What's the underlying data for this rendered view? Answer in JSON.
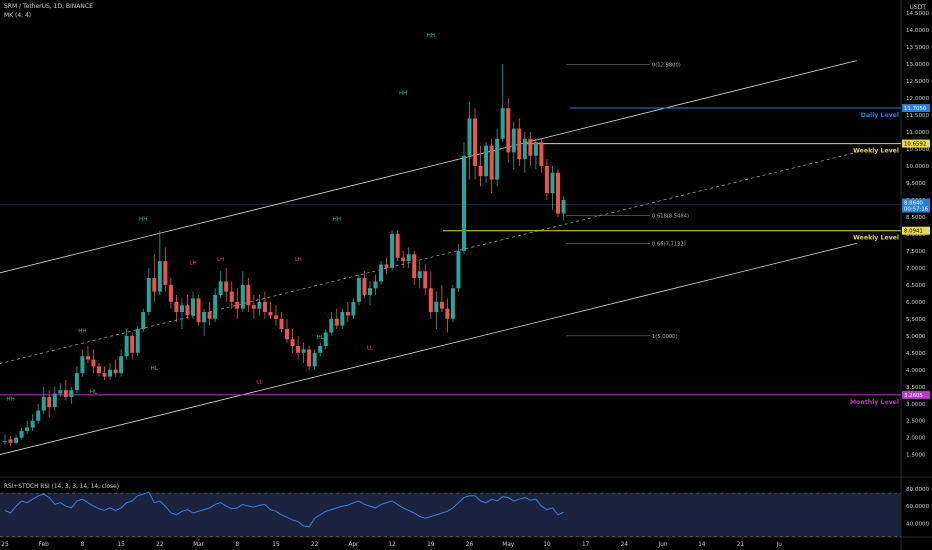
{
  "header": {
    "symbol_line": "SRM / TetherUS, 1D, BINANCE",
    "indicator_line": "MK (4, 4)",
    "currency": "USDT"
  },
  "colors": {
    "up": "#26a69a",
    "down": "#ef5350",
    "grid": "#1a1a1a",
    "channel": "#d9d9d9",
    "daily": "#2a7fd4",
    "weekly": "#e6d84a",
    "monthly": "#b23dbf",
    "rsi_line": "#3f7fd9",
    "rsi_band": "#1a2240",
    "price_tag": "#2a7fd4"
  },
  "chart_data": {
    "type": "candlestick",
    "price_axis": {
      "ticks": [
        "14.5000",
        "14.0000",
        "13.5000",
        "13.0000",
        "12.5000",
        "12.0000",
        "11.5000",
        "11.0000",
        "10.5000",
        "10.0000",
        "9.5000",
        "9.0000",
        "8.5000",
        "8.0000",
        "7.5000",
        "7.0000",
        "6.5000",
        "6.0000",
        "5.5000",
        "5.0000",
        "4.5000",
        "4.0000",
        "3.5000",
        "3.0000",
        "2.5000",
        "2.0000",
        "1.5000"
      ],
      "tick_values": [
        14.5,
        14,
        13.5,
        13,
        12.5,
        12,
        11.5,
        11,
        10.5,
        10,
        9.5,
        9,
        8.5,
        8,
        7.5,
        7,
        6.5,
        6,
        5.5,
        5,
        4.5,
        4,
        3.5,
        3,
        2.5,
        2,
        1.5
      ],
      "range": [
        1.05,
        14.65
      ]
    },
    "date_axis": {
      "labels": [
        "25",
        "Feb",
        "8",
        "15",
        "22",
        "Mar",
        "8",
        "15",
        "22",
        "Apr",
        "12",
        "19",
        "26",
        "May",
        "10",
        "17",
        "24",
        "Jun",
        "14",
        "21",
        "Ju"
      ],
      "label_day_index": [
        0,
        7,
        14,
        21,
        28,
        35,
        42,
        49,
        56,
        63,
        70,
        77,
        84,
        91,
        98,
        105,
        112,
        119,
        126,
        133,
        140
      ]
    },
    "candles": [
      [
        1.9,
        2.1,
        1.8,
        1.9
      ],
      [
        1.95,
        2.05,
        1.75,
        1.85
      ],
      [
        1.85,
        2.1,
        1.8,
        2.0
      ],
      [
        2.0,
        2.3,
        1.95,
        2.2
      ],
      [
        2.2,
        2.5,
        2.1,
        2.3
      ],
      [
        2.3,
        2.7,
        2.2,
        2.5
      ],
      [
        2.5,
        3.0,
        2.4,
        2.8
      ],
      [
        2.8,
        3.5,
        2.7,
        3.2
      ],
      [
        3.2,
        3.4,
        2.6,
        2.9
      ],
      [
        2.9,
        3.5,
        2.8,
        3.3
      ],
      [
        3.3,
        3.6,
        3.2,
        3.4
      ],
      [
        3.4,
        3.7,
        3.1,
        3.2
      ],
      [
        3.2,
        3.5,
        3.0,
        3.4
      ],
      [
        3.4,
        4.1,
        3.3,
        3.9
      ],
      [
        3.9,
        4.6,
        3.8,
        4.4
      ],
      [
        4.4,
        4.7,
        4.2,
        4.3
      ],
      [
        4.3,
        4.6,
        3.9,
        4.1
      ],
      [
        4.1,
        4.2,
        3.8,
        3.9
      ],
      [
        3.9,
        4.1,
        3.7,
        3.8
      ],
      [
        3.8,
        4.2,
        3.7,
        4.0
      ],
      [
        4.0,
        4.3,
        3.8,
        3.9
      ],
      [
        3.9,
        4.6,
        3.8,
        4.4
      ],
      [
        4.4,
        5.2,
        4.3,
        5.0
      ],
      [
        5.0,
        5.1,
        4.3,
        4.5
      ],
      [
        4.5,
        5.3,
        4.4,
        5.2
      ],
      [
        5.2,
        5.8,
        5.1,
        5.7
      ],
      [
        5.7,
        7.0,
        5.6,
        6.7
      ],
      [
        6.7,
        7.4,
        6.0,
        6.3
      ],
      [
        6.3,
        8.1,
        6.2,
        7.2
      ],
      [
        7.2,
        7.6,
        6.3,
        6.5
      ],
      [
        6.5,
        6.7,
        5.8,
        6.0
      ],
      [
        6.0,
        6.2,
        5.4,
        5.7
      ],
      [
        5.7,
        6.1,
        5.2,
        5.9
      ],
      [
        5.9,
        6.2,
        5.5,
        5.6
      ],
      [
        5.6,
        6.3,
        5.5,
        6.1
      ],
      [
        6.1,
        6.2,
        5.3,
        5.4
      ],
      [
        5.4,
        5.8,
        5.0,
        5.7
      ],
      [
        5.7,
        6.0,
        5.3,
        5.5
      ],
      [
        5.5,
        6.4,
        5.4,
        6.2
      ],
      [
        6.2,
        6.9,
        6.1,
        6.6
      ],
      [
        6.6,
        7.0,
        6.0,
        6.3
      ],
      [
        6.3,
        6.6,
        5.8,
        6.0
      ],
      [
        6.0,
        6.4,
        5.5,
        5.8
      ],
      [
        5.8,
        6.9,
        5.7,
        6.5
      ],
      [
        6.5,
        6.7,
        5.7,
        5.9
      ],
      [
        5.9,
        6.2,
        5.5,
        5.8
      ],
      [
        5.8,
        6.2,
        5.6,
        6.0
      ],
      [
        6.0,
        6.3,
        5.5,
        5.7
      ],
      [
        5.7,
        6.0,
        5.5,
        5.6
      ],
      [
        5.6,
        5.9,
        5.3,
        5.5
      ],
      [
        5.5,
        5.7,
        5.1,
        5.2
      ],
      [
        5.2,
        5.5,
        4.8,
        4.9
      ],
      [
        4.9,
        5.2,
        4.5,
        4.7
      ],
      [
        4.7,
        5.0,
        4.3,
        4.5
      ],
      [
        4.5,
        4.8,
        4.2,
        4.6
      ],
      [
        4.6,
        4.7,
        4.0,
        4.1
      ],
      [
        4.1,
        4.6,
        4.0,
        4.5
      ],
      [
        4.5,
        4.8,
        4.4,
        4.7
      ],
      [
        4.7,
        5.2,
        4.6,
        5.1
      ],
      [
        5.1,
        5.7,
        5.0,
        5.5
      ],
      [
        5.5,
        5.8,
        5.2,
        5.3
      ],
      [
        5.3,
        5.8,
        5.2,
        5.7
      ],
      [
        5.7,
        6.0,
        5.4,
        5.6
      ],
      [
        5.6,
        6.1,
        5.5,
        6.0
      ],
      [
        6.0,
        6.8,
        5.9,
        6.7
      ],
      [
        6.7,
        6.9,
        6.1,
        6.2
      ],
      [
        6.2,
        6.6,
        5.9,
        6.4
      ],
      [
        6.4,
        6.8,
        6.2,
        6.6
      ],
      [
        6.6,
        7.2,
        6.5,
        7.1
      ],
      [
        7.1,
        7.3,
        6.8,
        7.0
      ],
      [
        7.0,
        8.1,
        6.9,
        8.0
      ],
      [
        8.0,
        8.1,
        7.2,
        7.3
      ],
      [
        7.3,
        7.5,
        7.0,
        7.2
      ],
      [
        7.2,
        7.6,
        7.0,
        7.4
      ],
      [
        7.4,
        7.5,
        6.5,
        6.7
      ],
      [
        6.7,
        7.2,
        6.4,
        6.9
      ],
      [
        6.9,
        7.1,
        6.2,
        6.4
      ],
      [
        6.4,
        6.9,
        5.5,
        5.7
      ],
      [
        5.7,
        6.3,
        5.2,
        6.0
      ],
      [
        6.0,
        6.5,
        5.7,
        5.8
      ],
      [
        5.8,
        6.1,
        5.1,
        5.5
      ],
      [
        5.5,
        6.5,
        5.4,
        6.4
      ],
      [
        6.4,
        7.7,
        6.3,
        7.5
      ],
      [
        7.5,
        10.7,
        7.4,
        10.3
      ],
      [
        10.3,
        11.9,
        9.6,
        11.4
      ],
      [
        11.4,
        11.7,
        9.6,
        10.0
      ],
      [
        10.0,
        10.6,
        9.4,
        9.7
      ],
      [
        9.7,
        10.7,
        9.5,
        10.6
      ],
      [
        10.6,
        10.8,
        9.2,
        9.6
      ],
      [
        9.6,
        11.1,
        9.4,
        10.8
      ],
      [
        10.8,
        13.0,
        10.7,
        11.7
      ],
      [
        11.7,
        12.0,
        10.1,
        10.4
      ],
      [
        10.4,
        11.3,
        9.9,
        11.1
      ],
      [
        11.1,
        11.4,
        10.0,
        10.2
      ],
      [
        10.2,
        11.0,
        9.8,
        10.8
      ],
      [
        10.8,
        11.0,
        10.0,
        10.3
      ],
      [
        10.3,
        10.8,
        9.9,
        10.7
      ],
      [
        10.7,
        10.8,
        9.8,
        10.0
      ],
      [
        10.0,
        10.2,
        9.0,
        9.2
      ],
      [
        9.2,
        10.0,
        8.7,
        9.8
      ],
      [
        9.8,
        9.9,
        8.5,
        8.6
      ],
      [
        8.6,
        9.1,
        8.4,
        9.0
      ]
    ],
    "levels": [
      {
        "name": "Daily Level",
        "value": 11.705,
        "tag": "11.7050"
      },
      {
        "name": "Weekly Level",
        "value": 10.659,
        "tag": "10.6592"
      },
      {
        "name": "Weekly Level",
        "value": 8.094,
        "tag": "8.0941"
      },
      {
        "name": "Monthly Level",
        "value": 3.26,
        "tag": "3.2605"
      }
    ],
    "fib_labels": [
      {
        "text": "0(12.9800)",
        "value": 12.98
      },
      {
        "text": "0.618(8.5484)",
        "value": 8.5484
      },
      {
        "text": "0.66(7.7132)",
        "value": 7.7132
      },
      {
        "text": "1(5.0000)",
        "value": 5.0
      }
    ],
    "price_tag": {
      "lines": [
        "8.8640",
        "00:57:16"
      ],
      "value": 8.864
    },
    "swing_labels": [
      {
        "text": "HH",
        "day": 1,
        "price": 3.1,
        "kind": "up"
      },
      {
        "text": "HL",
        "day": 16,
        "price": 3.3,
        "kind": "up"
      },
      {
        "text": "HH",
        "day": 14,
        "price": 5.1,
        "kind": "up"
      },
      {
        "text": "HL",
        "day": 27,
        "price": 4.0,
        "kind": "up"
      },
      {
        "text": "HH",
        "day": 25,
        "price": 8.4,
        "kind": "up"
      },
      {
        "text": "LH",
        "day": 34,
        "price": 7.1,
        "kind": "down"
      },
      {
        "text": "LH",
        "day": 39,
        "price": 7.2,
        "kind": "down"
      },
      {
        "text": "LL",
        "day": 46,
        "price": 3.6,
        "kind": "down"
      },
      {
        "text": "HH",
        "day": 60,
        "price": 8.4,
        "kind": "up"
      },
      {
        "text": "LH",
        "day": 53,
        "price": 7.2,
        "kind": "down"
      },
      {
        "text": "HL",
        "day": 57,
        "price": 4.9,
        "kind": "up"
      },
      {
        "text": "LL",
        "day": 66,
        "price": 4.6,
        "kind": "down"
      },
      {
        "text": "HH",
        "day": 72,
        "price": 12.1,
        "kind": "up"
      },
      {
        "text": "HH",
        "day": 77,
        "price": 13.8,
        "kind": "up"
      }
    ],
    "rsi": {
      "title": "RSI+STOCH RSI (14, 3, 3, 14, 14, close)",
      "ticks": [
        "80.0000",
        "60.0000",
        "40.0000"
      ],
      "tick_values": [
        80,
        60,
        40
      ],
      "range": [
        30,
        88
      ],
      "band": [
        25,
        75
      ],
      "values": [
        55,
        52,
        60,
        66,
        64,
        68,
        72,
        74,
        70,
        62,
        64,
        60,
        58,
        66,
        68,
        64,
        60,
        57,
        55,
        58,
        55,
        58,
        64,
        66,
        72,
        74,
        76,
        64,
        66,
        60,
        52,
        50,
        54,
        56,
        52,
        54,
        56,
        58,
        62,
        64,
        60,
        57,
        58,
        62,
        60,
        59,
        61,
        62,
        56,
        54,
        50,
        47,
        44,
        42,
        37,
        36,
        46,
        50,
        54,
        56,
        58,
        60,
        61,
        64,
        66,
        62,
        60,
        58,
        62,
        64,
        66,
        62,
        58,
        55,
        52,
        48,
        46,
        48,
        50,
        52,
        54,
        58,
        64,
        70,
        72,
        72,
        66,
        64,
        68,
        66,
        71,
        70,
        66,
        68,
        70,
        67,
        68,
        60,
        56,
        58,
        50,
        53
      ]
    }
  }
}
